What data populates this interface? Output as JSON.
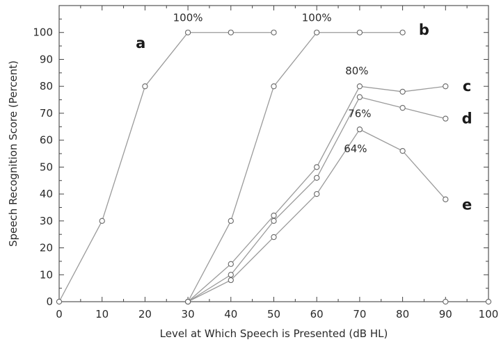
{
  "chart_data": {
    "type": "line",
    "xlabel": "Level at Which Speech is Presented (dB HL)",
    "ylabel": "Speech Recognition Score (Percent)",
    "xlim": [
      0,
      100
    ],
    "ylim": [
      0,
      110
    ],
    "xticks": [
      0,
      10,
      20,
      30,
      40,
      50,
      60,
      70,
      80,
      90,
      100
    ],
    "yticks": [
      0,
      10,
      20,
      30,
      40,
      50,
      60,
      70,
      80,
      90,
      100
    ],
    "grid": false,
    "colors": {
      "line": "#9a9a9a",
      "marker": "#666666",
      "text": "#2a2a2a"
    },
    "series": [
      {
        "name": "a",
        "x": [
          0,
          10,
          20,
          30,
          40,
          50
        ],
        "y": [
          0,
          30,
          80,
          100,
          100,
          100
        ]
      },
      {
        "name": "b",
        "x": [
          30,
          40,
          50,
          60,
          70,
          80
        ],
        "y": [
          0,
          30,
          80,
          100,
          100,
          100
        ]
      },
      {
        "name": "c",
        "x": [
          30,
          40,
          50,
          60,
          70,
          80,
          90
        ],
        "y": [
          0,
          14,
          32,
          50,
          80,
          78,
          80
        ]
      },
      {
        "name": "d",
        "x": [
          30,
          40,
          50,
          60,
          70,
          80,
          90
        ],
        "y": [
          0,
          10,
          30,
          46,
          76,
          72,
          68
        ]
      },
      {
        "name": "e",
        "x": [
          30,
          40,
          50,
          60,
          70,
          80,
          90
        ],
        "y": [
          0,
          8,
          24,
          40,
          64,
          56,
          38
        ]
      }
    ],
    "extra_points": [
      {
        "x": 90,
        "y": 0
      },
      {
        "x": 100,
        "y": 0
      }
    ],
    "annotations": [
      {
        "text": "100%",
        "x": 30,
        "y": 100
      },
      {
        "text": "100%",
        "x": 60,
        "y": 100
      },
      {
        "text": "80%",
        "x": 70,
        "y": 80
      },
      {
        "text": "76%",
        "x": 70,
        "y": 76
      },
      {
        "text": "64%",
        "x": 70,
        "y": 64
      }
    ],
    "series_labels": [
      {
        "text": "a",
        "x": 19,
        "y": 96
      },
      {
        "text": "b",
        "x": 85,
        "y": 101
      },
      {
        "text": "c",
        "x": 95,
        "y": 80
      },
      {
        "text": "d",
        "x": 95,
        "y": 68
      },
      {
        "text": "e",
        "x": 95,
        "y": 36
      }
    ]
  }
}
